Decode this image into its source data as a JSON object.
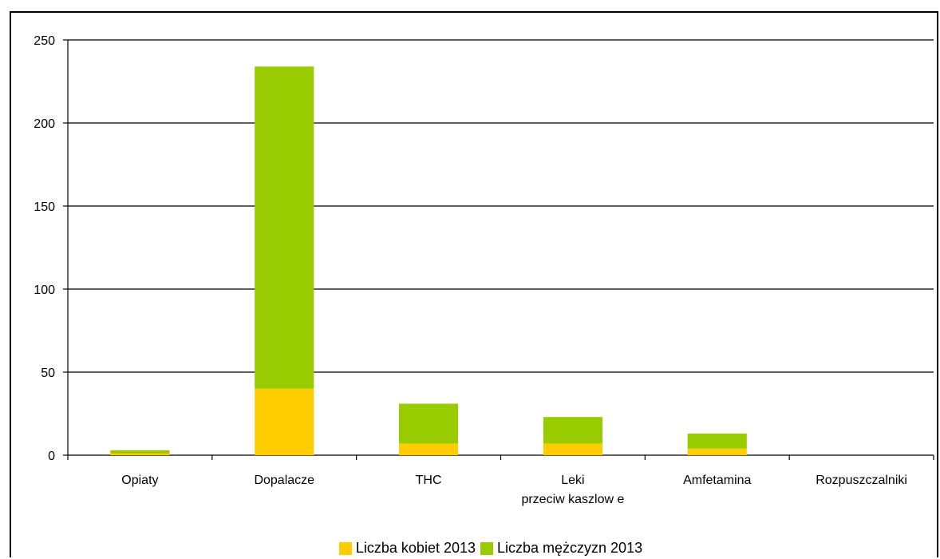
{
  "chart_data": {
    "type": "bar",
    "stacked": true,
    "categories": [
      "Opiaty",
      "Dopalacze",
      "THC",
      "Leki przeciw kaszlow e",
      "Amfetamina",
      "Rozpuszczalniki"
    ],
    "category_lines": [
      [
        "Opiaty"
      ],
      [
        "Dopalacze"
      ],
      [
        "THC"
      ],
      [
        "Leki",
        "przeciw kaszlow e"
      ],
      [
        "Amfetamina"
      ],
      [
        "Rozpuszczalniki"
      ]
    ],
    "series": [
      {
        "name": "Liczba kobiet 2013",
        "color": "#ffcc00",
        "values": [
          1,
          40,
          7,
          7,
          4,
          0
        ]
      },
      {
        "name": "Liczba mężczyzn 2013",
        "color": "#99cc00",
        "values": [
          2,
          194,
          24,
          16,
          9,
          0
        ]
      }
    ],
    "ylim": [
      0,
      250
    ],
    "yticks": [
      "0",
      "50",
      "100",
      "150",
      "200",
      "250"
    ],
    "grid": true,
    "legend_position": "bottom",
    "title": "",
    "xlabel": "",
    "ylabel": ""
  }
}
